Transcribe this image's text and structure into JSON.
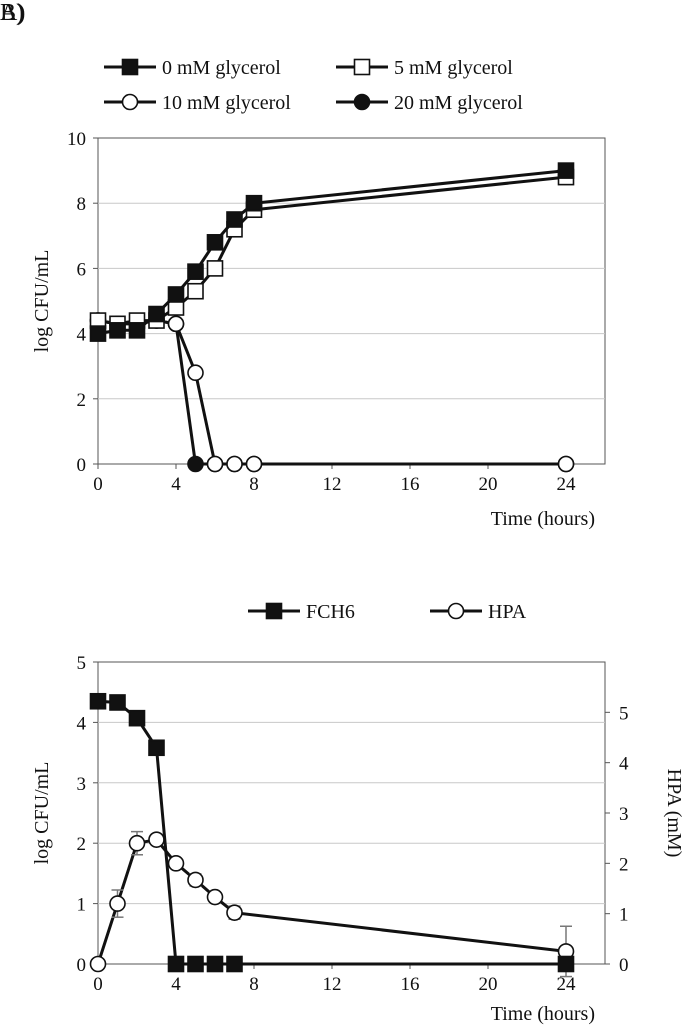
{
  "panels": {
    "a_label": "A)",
    "b_label": "B)"
  },
  "chart_data": [
    {
      "type": "line",
      "panel": "A)",
      "title": "",
      "xlabel": "Time (hours)",
      "ylabel": "log CFU/mL",
      "xlim": [
        0,
        26
      ],
      "ylim": [
        0,
        10
      ],
      "xticks": [
        0,
        4,
        8,
        12,
        16,
        20,
        24
      ],
      "yticks": [
        0,
        2,
        4,
        6,
        8,
        10
      ],
      "grid": "horizontal",
      "legend": "top",
      "series": [
        {
          "name": "0 mM glycerol",
          "marker": "square-filled",
          "points": [
            [
              0,
              4.0
            ],
            [
              1,
              4.1
            ],
            [
              2,
              4.1
            ],
            [
              3,
              4.6
            ],
            [
              4,
              5.2
            ],
            [
              5,
              5.9
            ],
            [
              6,
              6.8
            ],
            [
              7,
              7.5
            ],
            [
              8,
              8.0
            ],
            [
              24,
              9.0
            ]
          ]
        },
        {
          "name": "5 mM glycerol",
          "marker": "square-open",
          "points": [
            [
              0,
              4.4
            ],
            [
              1,
              4.3
            ],
            [
              2,
              4.4
            ],
            [
              3,
              4.4
            ],
            [
              4,
              4.8
            ],
            [
              5,
              5.3
            ],
            [
              6,
              6.0
            ],
            [
              7,
              7.2
            ],
            [
              8,
              7.8
            ],
            [
              24,
              8.8
            ]
          ]
        },
        {
          "name": "10 mM glycerol",
          "marker": "circle-open",
          "points": [
            [
              0,
              4.4
            ],
            [
              1,
              4.3
            ],
            [
              2,
              4.3
            ],
            [
              3,
              4.4
            ],
            [
              4,
              4.3
            ],
            [
              5,
              2.8
            ],
            [
              6,
              0
            ],
            [
              7,
              0
            ],
            [
              8,
              0
            ],
            [
              24,
              0
            ]
          ]
        },
        {
          "name": "20 mM glycerol",
          "marker": "circle-filled",
          "points": [
            [
              0,
              4.4
            ],
            [
              1,
              4.3
            ],
            [
              2,
              4.3
            ],
            [
              3,
              4.4
            ],
            [
              4,
              4.3
            ],
            [
              5,
              0
            ],
            [
              6,
              0
            ],
            [
              7,
              0
            ],
            [
              8,
              0
            ],
            [
              24,
              0
            ]
          ]
        }
      ]
    },
    {
      "type": "line",
      "panel": "B)",
      "title": "",
      "xlabel": "Time (hours)",
      "ylabel": "log CFU/mL",
      "y2label": "HPA (mM)",
      "xlim": [
        0,
        26
      ],
      "ylim": [
        0,
        5
      ],
      "y2lim": [
        0,
        6
      ],
      "xticks": [
        0,
        4,
        8,
        12,
        16,
        20,
        24
      ],
      "yticks": [
        0,
        1,
        2,
        3,
        4,
        5
      ],
      "y2ticks": [
        0,
        1,
        2,
        3,
        4,
        5
      ],
      "grid": "horizontal",
      "legend": "top",
      "series": [
        {
          "name": "FCH6",
          "marker": "square-filled",
          "axis": "left",
          "points": [
            [
              0,
              4.35
            ],
            [
              1,
              4.33
            ],
            [
              2,
              4.07
            ],
            [
              3,
              3.58
            ],
            [
              4,
              0
            ],
            [
              5,
              0
            ],
            [
              6,
              0
            ],
            [
              7,
              0
            ],
            [
              24,
              0
            ]
          ]
        },
        {
          "name": "HPA",
          "marker": "circle-open",
          "axis": "right",
          "points": [
            [
              0,
              0
            ],
            [
              1,
              1.2
            ],
            [
              2,
              2.4
            ],
            [
              3,
              2.47
            ],
            [
              4,
              2.0
            ],
            [
              5,
              1.67
            ],
            [
              6,
              1.33
            ],
            [
              7,
              1.02
            ],
            [
              24,
              0.25
            ]
          ],
          "error": [
            0,
            0.27,
            0.23,
            0.1,
            0.07,
            0.12,
            0.1,
            0.13,
            0.5
          ]
        }
      ]
    }
  ]
}
